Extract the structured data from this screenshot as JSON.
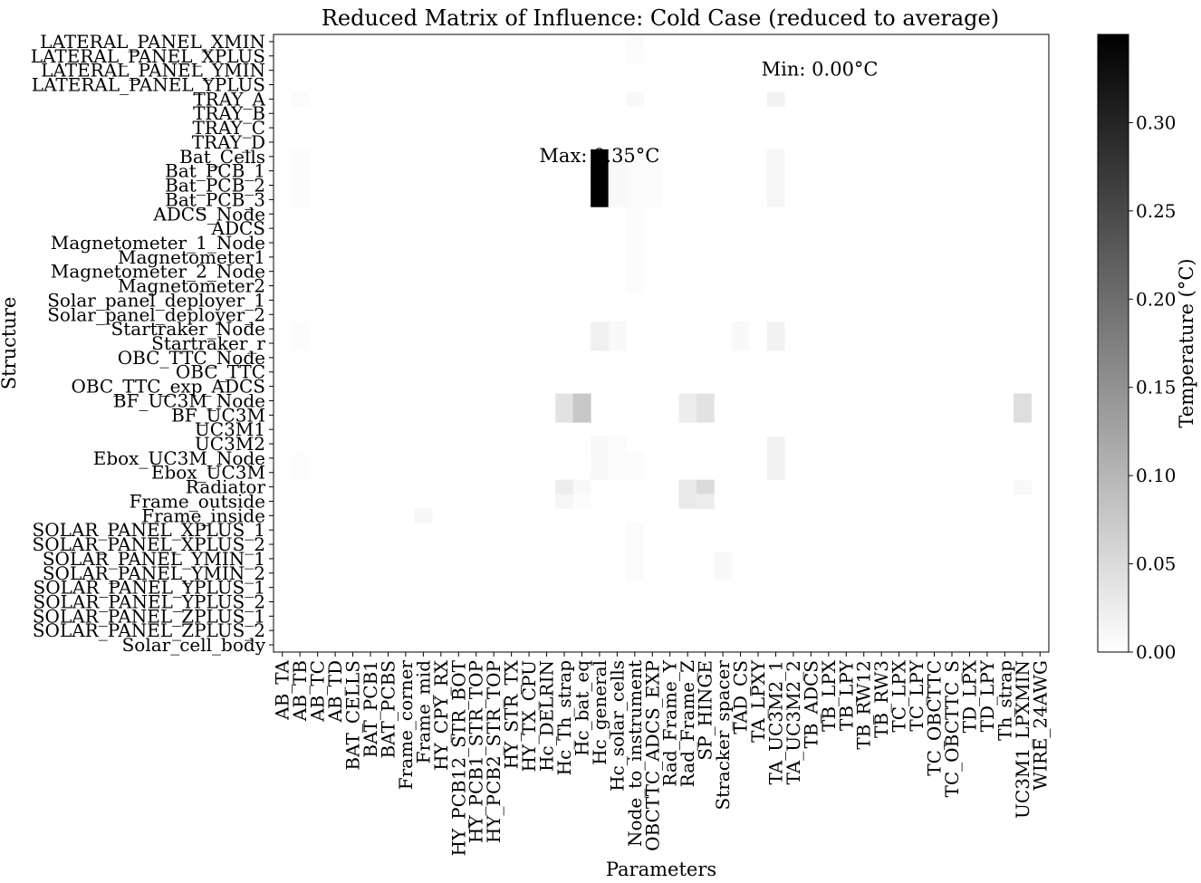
{
  "chart_data": {
    "type": "heatmap",
    "title": "Reduced Matrix of Influence: Cold Case (reduced to average)",
    "xlabel": "Parameters",
    "ylabel": "Structure",
    "colorbar": {
      "label": "Temperature (°C)",
      "min": 0.0,
      "max": 0.35,
      "ticks": [
        "0.00",
        "0.05",
        "0.10",
        "0.15",
        "0.20",
        "0.25",
        "0.30"
      ],
      "colormap": "Greys",
      "low_color": "#ffffff",
      "high_color": "#000000"
    },
    "annotations": {
      "max_label": "Max: 0.35°C",
      "min_label": "Min: 0.00°C",
      "max_color": "#ff0000",
      "min_color": "#0000ff"
    },
    "rows": [
      "LATERAL_PANEL_XMIN",
      "LATERAL_PANEL_XPLUS",
      "LATERAL_PANEL_YMIN",
      "LATERAL_PANEL_YPLUS",
      "TRAY_A",
      "TRAY_B",
      "TRAY_C",
      "TRAY_D",
      "Bat_Cells",
      "Bat_PCB_1",
      "Bat_PCB_2",
      "Bat_PCB_3",
      "ADCS_Node",
      "ADCS",
      "Magnetometer_1_Node",
      "Magnetometer1",
      "Magnetometer_2_Node",
      "Magnetometer2",
      "Solar_panel_deployer_1",
      "Solar_panel_deployer_2",
      "Startraker_Node",
      "Startraker_r",
      "OBC_TTC_Node",
      "OBC_TTC",
      "OBC_TTC_exp_ADCS",
      "BF_UC3M_Node",
      "BF_UC3M",
      "UC3M1",
      "UC3M2",
      "Ebox_UC3M_Node",
      "Ebox_UC3M",
      "Radiator",
      "Frame_outside",
      "Frame_inside",
      "SOLAR_PANEL_XPLUS_1",
      "SOLAR_PANEL_XPLUS_2",
      "SOLAR_PANEL_YMIN_1",
      "SOLAR_PANEL_YMIN_2",
      "SOLAR_PANEL_YPLUS_1",
      "SOLAR_PANEL_YPLUS_2",
      "SOLAR_PANEL_ZPLUS_1",
      "SOLAR_PANEL_ZPLUS_2",
      "Solar_cell_body"
    ],
    "columns": [
      "AB_TA",
      "AB_TB",
      "AB_TC",
      "AB_TD",
      "BAT_CELLS",
      "BAT_PCB1",
      "BAT_PCBS",
      "Frame_corner",
      "Frame_mid",
      "HY_CPY_RX",
      "HY_PCB12_STR_BOT",
      "HY_PCB1_STR_TOP",
      "HY_PCB2_STR_TOP",
      "HY_STR_TX",
      "HY_TX_CPU",
      "Hc_DELRIN",
      "Hc_Th_strap",
      "Hc_bat_eq",
      "Hc_general",
      "Hc_solar_cells",
      "Node_to_instrument",
      "OBCTTC_ADCS_EXP",
      "Rad_Frame_Y",
      "Rad_Frame_Z",
      "SP_HINGE",
      "Stracker_spacer",
      "TAD_CS",
      "TA_LPXY",
      "TA_UC3M2_1",
      "TA_UC3M2_2",
      "TB_ADCS",
      "TB_LPX",
      "TB_LPY",
      "TB_RW12",
      "TB_RW3",
      "TC_LPX",
      "TC_LPY",
      "TC_OBCTTC",
      "TC_OBCTTC_S",
      "TD_LPX",
      "TD_LPY",
      "Th_strap",
      "UC3M1_LPXMIN",
      "WIRE_24AWG"
    ],
    "cells": [
      [
        0,
        20,
        0.006
      ],
      [
        1,
        20,
        0.004
      ],
      [
        4,
        1,
        0.006
      ],
      [
        4,
        20,
        0.008
      ],
      [
        4,
        28,
        0.018
      ],
      [
        8,
        1,
        0.004
      ],
      [
        8,
        18,
        0.35
      ],
      [
        8,
        19,
        0.006
      ],
      [
        8,
        20,
        0.004
      ],
      [
        8,
        21,
        0.004
      ],
      [
        8,
        28,
        0.012
      ],
      [
        9,
        1,
        0.004
      ],
      [
        9,
        18,
        0.35
      ],
      [
        9,
        19,
        0.008
      ],
      [
        9,
        20,
        0.005
      ],
      [
        9,
        21,
        0.005
      ],
      [
        9,
        28,
        0.012
      ],
      [
        10,
        1,
        0.004
      ],
      [
        10,
        18,
        0.35
      ],
      [
        10,
        19,
        0.008
      ],
      [
        10,
        20,
        0.005
      ],
      [
        10,
        21,
        0.005
      ],
      [
        10,
        28,
        0.012
      ],
      [
        11,
        1,
        0.004
      ],
      [
        11,
        18,
        0.35
      ],
      [
        11,
        19,
        0.008
      ],
      [
        11,
        20,
        0.005
      ],
      [
        11,
        21,
        0.005
      ],
      [
        11,
        28,
        0.012
      ],
      [
        12,
        20,
        0.004
      ],
      [
        13,
        20,
        0.004
      ],
      [
        14,
        20,
        0.004
      ],
      [
        15,
        20,
        0.004
      ],
      [
        16,
        20,
        0.004
      ],
      [
        17,
        20,
        0.004
      ],
      [
        20,
        1,
        0.004
      ],
      [
        20,
        18,
        0.02
      ],
      [
        20,
        19,
        0.008
      ],
      [
        20,
        26,
        0.008
      ],
      [
        20,
        28,
        0.018
      ],
      [
        21,
        1,
        0.004
      ],
      [
        21,
        18,
        0.02
      ],
      [
        21,
        19,
        0.008
      ],
      [
        21,
        26,
        0.008
      ],
      [
        21,
        28,
        0.018
      ],
      [
        25,
        16,
        0.04
      ],
      [
        25,
        17,
        0.075
      ],
      [
        25,
        23,
        0.025
      ],
      [
        25,
        24,
        0.04
      ],
      [
        25,
        42,
        0.045
      ],
      [
        26,
        16,
        0.04
      ],
      [
        26,
        17,
        0.075
      ],
      [
        26,
        23,
        0.025
      ],
      [
        26,
        24,
        0.04
      ],
      [
        26,
        42,
        0.045
      ],
      [
        28,
        18,
        0.01
      ],
      [
        28,
        19,
        0.006
      ],
      [
        28,
        28,
        0.018
      ],
      [
        29,
        1,
        0.003
      ],
      [
        29,
        18,
        0.008
      ],
      [
        29,
        19,
        0.005
      ],
      [
        29,
        20,
        0.004
      ],
      [
        29,
        28,
        0.018
      ],
      [
        30,
        1,
        0.003
      ],
      [
        30,
        18,
        0.008
      ],
      [
        30,
        19,
        0.005
      ],
      [
        30,
        20,
        0.004
      ],
      [
        30,
        28,
        0.018
      ],
      [
        31,
        16,
        0.025
      ],
      [
        31,
        17,
        0.008
      ],
      [
        31,
        23,
        0.03
      ],
      [
        31,
        24,
        0.05
      ],
      [
        31,
        42,
        0.008
      ],
      [
        32,
        16,
        0.012
      ],
      [
        32,
        17,
        0.004
      ],
      [
        32,
        23,
        0.03
      ],
      [
        32,
        24,
        0.025
      ],
      [
        33,
        8,
        0.012
      ],
      [
        34,
        20,
        0.006
      ],
      [
        35,
        20,
        0.006
      ],
      [
        36,
        20,
        0.006
      ],
      [
        36,
        25,
        0.008
      ],
      [
        37,
        20,
        0.006
      ],
      [
        37,
        25,
        0.008
      ]
    ]
  }
}
